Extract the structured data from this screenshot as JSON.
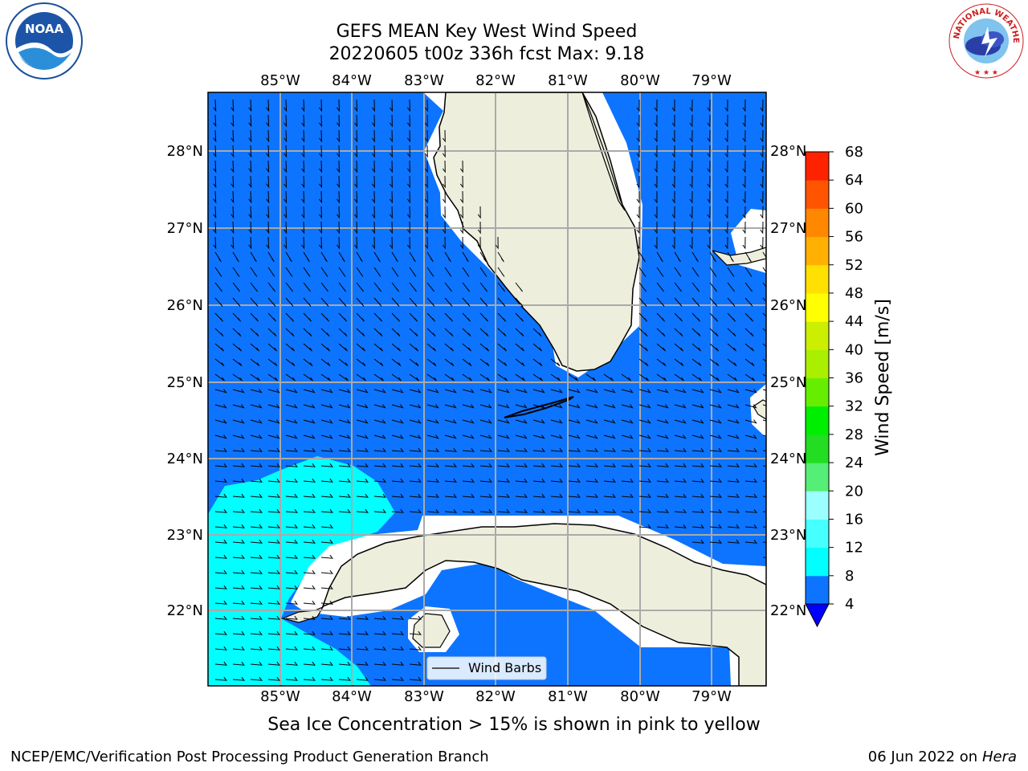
{
  "header": {
    "title_line1": "GEFS MEAN Key West Wind Speed",
    "title_line2": "20220605 t00z 336h fcst   Max: 9.18"
  },
  "map": {
    "region": "Key West / South Florida / Cuba",
    "lon_labels": [
      "85°W",
      "84°W",
      "83°W",
      "82°W",
      "81°W",
      "80°W",
      "79°W"
    ],
    "lat_labels": [
      "28°N",
      "27°N",
      "26°N",
      "25°N",
      "24°N",
      "23°N",
      "22°N"
    ],
    "ocean_color": "#0d74ff",
    "light_wind_color": "#00ffff",
    "land_color": "#eeeedd",
    "legend_label": "Wind Barbs"
  },
  "colorbar": {
    "label": "Wind Speed [m/s]",
    "ticks": [
      "4",
      "8",
      "12",
      "16",
      "20",
      "24",
      "28",
      "32",
      "36",
      "40",
      "44",
      "48",
      "52",
      "56",
      "60",
      "64",
      "68"
    ],
    "colors": [
      "#0d74ff",
      "#00ffff",
      "#46ffff",
      "#9cffff",
      "#55ee77",
      "#22dd22",
      "#00ee00",
      "#66ee00",
      "#aaee00",
      "#ccee00",
      "#ffff00",
      "#ffe000",
      "#ffb000",
      "#ff8800",
      "#ff5500",
      "#ff2200"
    ]
  },
  "caption": "Sea Ice Concentration > 15% is shown in pink to yellow",
  "footer": {
    "left": "NCEP/EMC/Verification Post Processing Product Generation Branch",
    "right_date": "06 Jun 2022 on",
    "right_host": "Hera"
  },
  "logos": {
    "noaa": "NOAA",
    "nws": "NATIONAL WEATHER SERVICE"
  }
}
